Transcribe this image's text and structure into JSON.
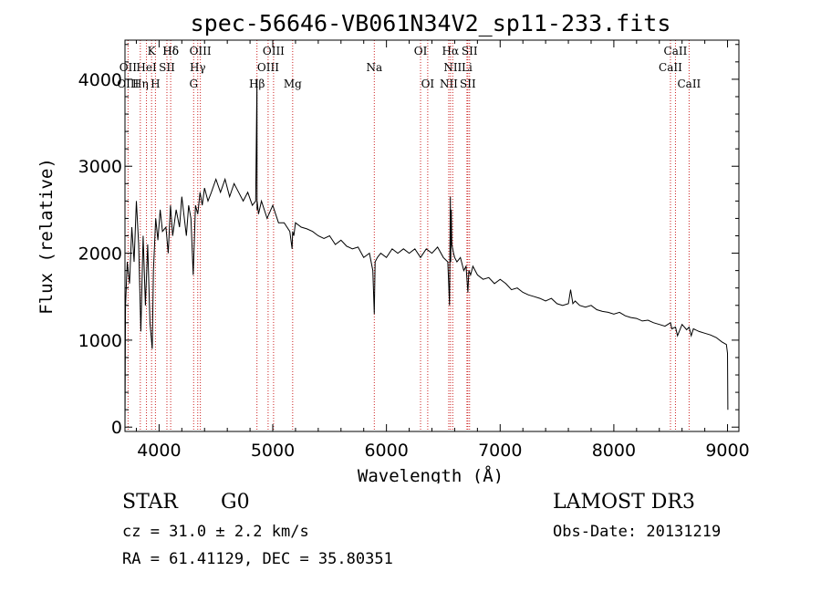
{
  "colors": {
    "axis": "#000000",
    "spectrum": "#000000",
    "line_marker": "#cc2020"
  },
  "chart_data": {
    "type": "line",
    "title": "spec-56646-VB061N34V2_sp11-233.fits",
    "xlabel": "Wavelength (Å)",
    "ylabel": "Flux (relative)",
    "xlim": [
      3700,
      9100
    ],
    "ylim": [
      -50,
      4450
    ],
    "xticks": [
      4000,
      5000,
      6000,
      7000,
      8000,
      9000
    ],
    "yticks": [
      0,
      1000,
      2000,
      3000,
      4000
    ],
    "spectrum_x": [
      3700,
      3705,
      3720,
      3740,
      3760,
      3780,
      3800,
      3820,
      3840,
      3860,
      3880,
      3900,
      3920,
      3940,
      3950,
      3970,
      3990,
      4010,
      4030,
      4060,
      4080,
      4100,
      4120,
      4150,
      4180,
      4200,
      4240,
      4260,
      4280,
      4300,
      4320,
      4340,
      4360,
      4380,
      4400,
      4430,
      4460,
      4500,
      4540,
      4580,
      4620,
      4660,
      4700,
      4740,
      4780,
      4820,
      4850,
      4861,
      4862,
      4863,
      4875,
      4900,
      4950,
      5000,
      5050,
      5100,
      5150,
      5170,
      5175,
      5185,
      5200,
      5250,
      5300,
      5350,
      5400,
      5450,
      5500,
      5550,
      5600,
      5650,
      5700,
      5750,
      5800,
      5850,
      5880,
      5893,
      5900,
      5920,
      5950,
      6000,
      6050,
      6100,
      6150,
      6200,
      6250,
      6300,
      6350,
      6400,
      6450,
      6500,
      6540,
      6555,
      6562,
      6565,
      6570,
      6575,
      6590,
      6600,
      6620,
      6650,
      6680,
      6700,
      6716,
      6725,
      6740,
      6760,
      6800,
      6850,
      6900,
      6950,
      7000,
      7050,
      7100,
      7150,
      7200,
      7250,
      7300,
      7350,
      7400,
      7450,
      7500,
      7550,
      7600,
      7620,
      7640,
      7660,
      7700,
      7750,
      7800,
      7850,
      7900,
      7950,
      8000,
      8050,
      8100,
      8150,
      8200,
      8250,
      8300,
      8350,
      8400,
      8450,
      8498,
      8510,
      8542,
      8560,
      8600,
      8640,
      8662,
      8680,
      8700,
      8750,
      8800,
      8850,
      8900,
      8950,
      8990,
      9000,
      9003
    ],
    "spectrum_y": [
      0,
      1400,
      1900,
      1650,
      2300,
      1900,
      2600,
      2100,
      1100,
      2200,
      1400,
      2100,
      1200,
      900,
      1800,
      2400,
      2150,
      2500,
      2250,
      2300,
      2000,
      2550,
      2200,
      2500,
      2300,
      2650,
      2200,
      2550,
      2400,
      1750,
      2550,
      2450,
      2700,
      2550,
      2750,
      2600,
      2700,
      2850,
      2700,
      2850,
      2650,
      2800,
      2700,
      2600,
      2700,
      2550,
      2600,
      4000,
      2500,
      2600,
      2450,
      2600,
      2400,
      2550,
      2350,
      2350,
      2250,
      2050,
      2250,
      2200,
      2350,
      2300,
      2280,
      2250,
      2200,
      2170,
      2200,
      2100,
      2150,
      2080,
      2050,
      2070,
      1950,
      2000,
      1800,
      1300,
      1900,
      1950,
      2000,
      1950,
      2050,
      2000,
      2050,
      2000,
      2050,
      1950,
      2050,
      2000,
      2070,
      1950,
      1900,
      1400,
      2650,
      1900,
      2500,
      2100,
      2000,
      1950,
      1900,
      1950,
      1800,
      1850,
      1550,
      1800,
      1750,
      1850,
      1750,
      1700,
      1720,
      1650,
      1700,
      1650,
      1580,
      1600,
      1550,
      1520,
      1500,
      1480,
      1450,
      1480,
      1420,
      1400,
      1420,
      1580,
      1420,
      1450,
      1400,
      1380,
      1400,
      1350,
      1330,
      1320,
      1300,
      1320,
      1280,
      1260,
      1250,
      1220,
      1230,
      1200,
      1180,
      1160,
      1200,
      1130,
      1150,
      1050,
      1180,
      1120,
      1150,
      1050,
      1130,
      1100,
      1080,
      1060,
      1030,
      980,
      950,
      850,
      200
    ]
  },
  "lines_row1": [
    {
      "label": "Hδ",
      "x": 4102
    },
    {
      "label": "K",
      "x": 3934
    },
    {
      "label": "Hδ",
      "x": 4102
    },
    {
      "label": "OIII",
      "x": 4363
    },
    {
      "label": "OIII",
      "x": 5007
    },
    {
      "label": "OI",
      "x": 6300
    },
    {
      "label": "Hα",
      "x": 6563
    },
    {
      "label": "SII",
      "x": 6731
    },
    {
      "label": "CaII",
      "x": 8542
    }
  ],
  "lines_row2": [
    {
      "label": "OII",
      "x": 3727
    },
    {
      "label": "HeI",
      "x": 3889
    },
    {
      "label": "SII",
      "x": 4069
    },
    {
      "label": "Hγ",
      "x": 4340
    },
    {
      "label": "OIII",
      "x": 4959
    },
    {
      "label": "Na",
      "x": 5893
    },
    {
      "label": "NII",
      "x": 6583
    },
    {
      "label": "Li",
      "x": 6708
    },
    {
      "label": "CaII",
      "x": 8498
    }
  ],
  "lines_row3": [
    {
      "label": "OIII",
      "x": 3727
    },
    {
      "label": "Hη",
      "x": 3835
    },
    {
      "label": "H",
      "x": 3968
    },
    {
      "label": "G",
      "x": 4304
    },
    {
      "label": "Hβ",
      "x": 4861
    },
    {
      "label": "Mg",
      "x": 5175
    },
    {
      "label": "OI",
      "x": 6363
    },
    {
      "label": "NII",
      "x": 6548
    },
    {
      "label": "SII",
      "x": 6716
    },
    {
      "label": "CaII",
      "x": 8662
    }
  ],
  "info": {
    "class_label": "STAR",
    "subclass": "G0",
    "survey": "LAMOST DR3",
    "redshift": "cz = 31.0 ± 2.2 km/s",
    "obs_date": "Obs-Date: 20131219",
    "coords": "RA =  61.41129, DEC =  35.80351"
  }
}
